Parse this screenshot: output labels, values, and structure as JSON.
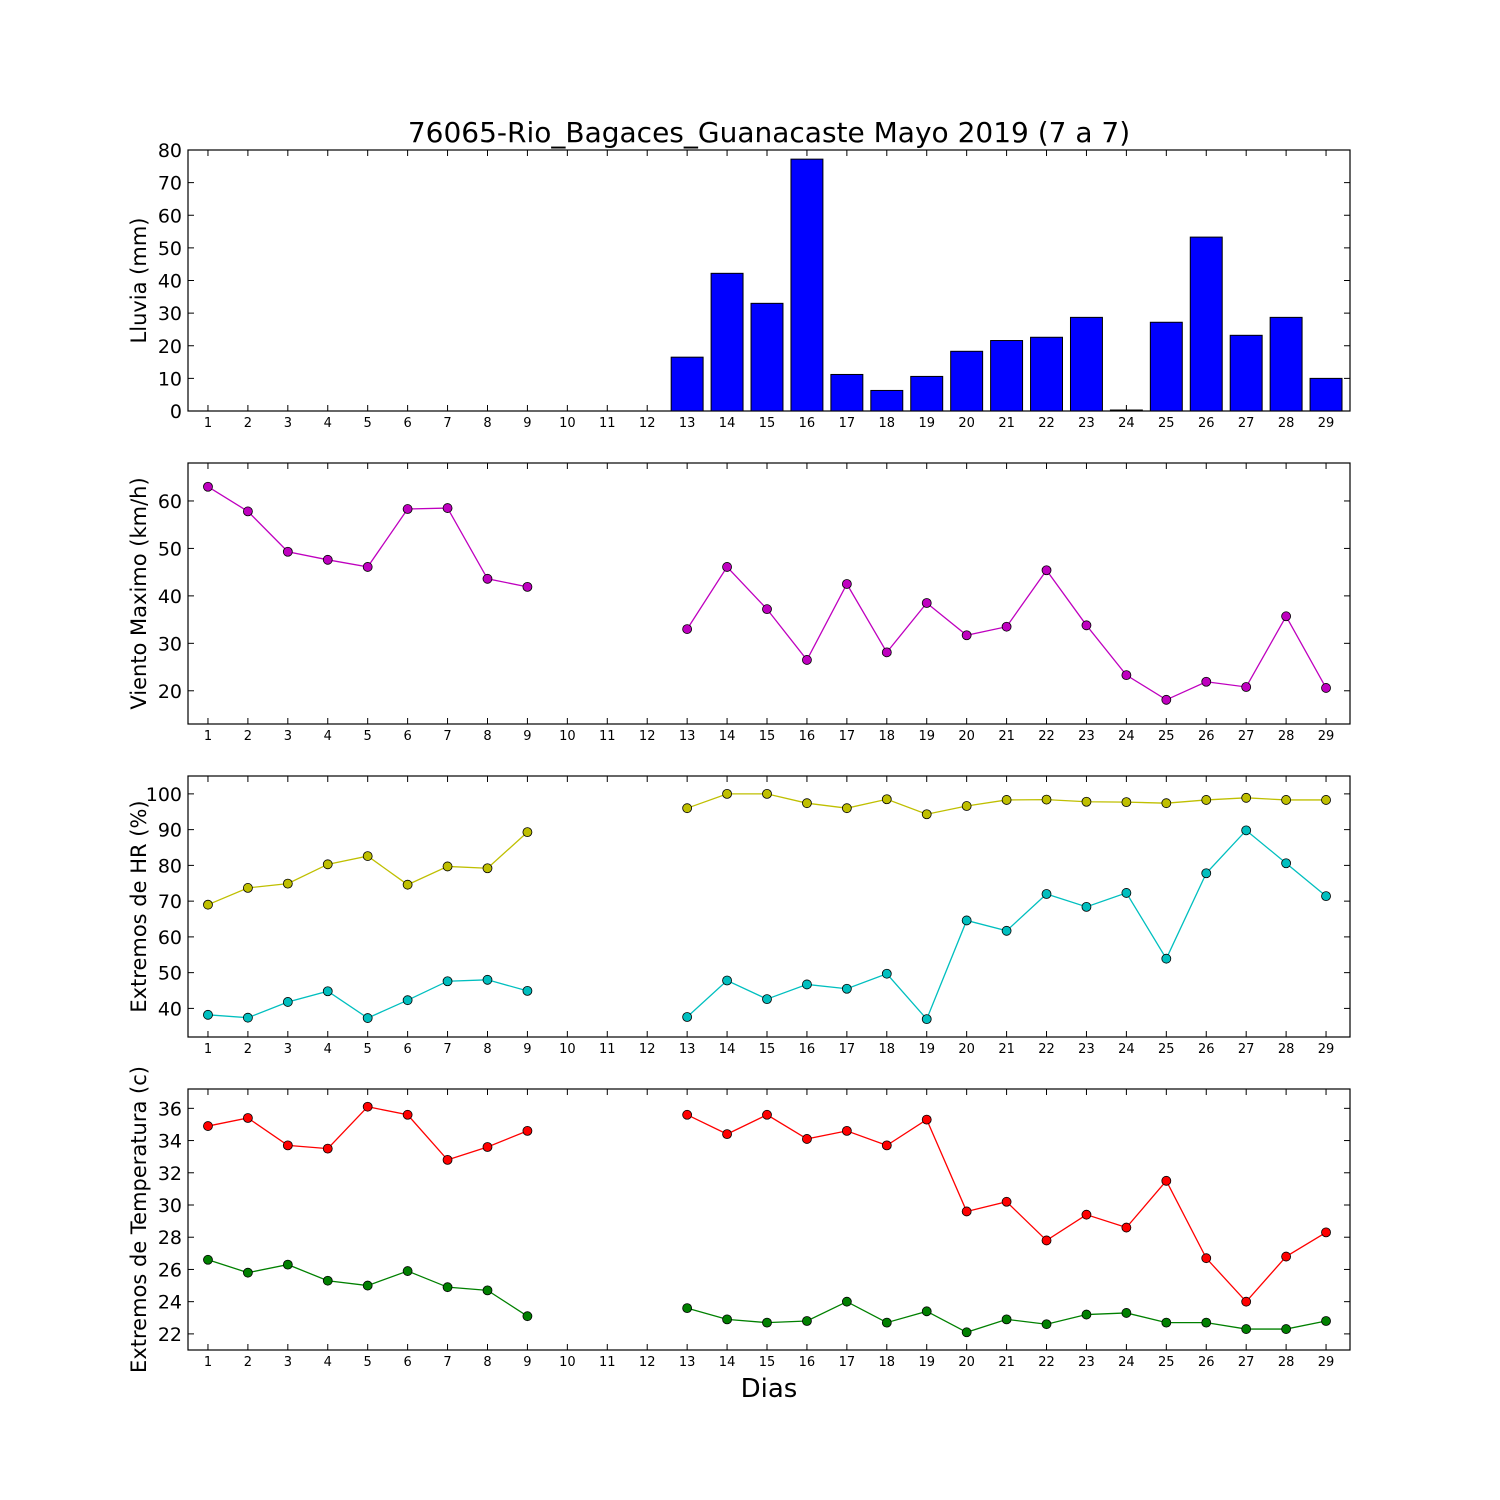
{
  "title": "76065-Rio_Bagaces_Guanacaste Mayo 2019  (7 a 7)",
  "xlabel": "Dias",
  "colors": {
    "rain": "#0000ff",
    "wind": "#bf00bf",
    "hr_max": "#bfbf00",
    "hr_min": "#00bfbf",
    "temp_max": "#ff0000",
    "temp_min": "#008000"
  },
  "chart_data": [
    {
      "type": "bar",
      "ylabel": "Lluvia (mm)",
      "categories": [
        "1",
        "2",
        "3",
        "4",
        "5",
        "6",
        "7",
        "8",
        "9",
        "10",
        "11",
        "12",
        "13",
        "14",
        "15",
        "16",
        "17",
        "18",
        "19",
        "20",
        "21",
        "22",
        "23",
        "24",
        "25",
        "26",
        "27",
        "28",
        "29"
      ],
      "ylim": [
        0,
        80
      ],
      "yticks": [
        0,
        10,
        20,
        30,
        40,
        50,
        60,
        70,
        80
      ],
      "grid": false,
      "series": [
        {
          "values": [
            0,
            0,
            0,
            0,
            0,
            0,
            0,
            0,
            0,
            0,
            0,
            0,
            16.5,
            42.2,
            33.0,
            77.2,
            11.2,
            6.3,
            10.6,
            18.3,
            21.6,
            22.6,
            28.7,
            0.3,
            27.2,
            53.3,
            23.2,
            28.7,
            10.0
          ]
        }
      ]
    },
    {
      "type": "line",
      "ylabel": "Viento Maximo (km/h)",
      "x": [
        1,
        2,
        3,
        4,
        5,
        6,
        7,
        8,
        9,
        10,
        11,
        12,
        13,
        14,
        15,
        16,
        17,
        18,
        19,
        20,
        21,
        22,
        23,
        24,
        25,
        26,
        27,
        28,
        29
      ],
      "ylim": [
        13,
        68
      ],
      "yticks": [
        20,
        30,
        40,
        50,
        60
      ],
      "grid": false,
      "series": [
        {
          "values": [
            63.0,
            57.8,
            49.3,
            47.6,
            46.1,
            58.3,
            58.5,
            43.6,
            41.9,
            null,
            null,
            null,
            33.0,
            46.1,
            37.2,
            26.5,
            42.5,
            28.1,
            38.5,
            31.7,
            33.5,
            45.4,
            33.8,
            23.3,
            18.1,
            21.9,
            20.8,
            35.7,
            20.6
          ]
        }
      ]
    },
    {
      "type": "line",
      "ylabel": "Extremos de HR (%)",
      "x": [
        1,
        2,
        3,
        4,
        5,
        6,
        7,
        8,
        9,
        10,
        11,
        12,
        13,
        14,
        15,
        16,
        17,
        18,
        19,
        20,
        21,
        22,
        23,
        24,
        25,
        26,
        27,
        28,
        29
      ],
      "ylim": [
        32,
        105
      ],
      "yticks": [
        40,
        50,
        60,
        70,
        80,
        90,
        100
      ],
      "grid": false,
      "series": [
        {
          "values": [
            69.0,
            73.7,
            74.9,
            80.3,
            82.6,
            74.6,
            79.7,
            79.2,
            89.3,
            null,
            null,
            null,
            96.0,
            100.0,
            100.0,
            97.4,
            96.0,
            98.5,
            94.3,
            96.6,
            98.3,
            98.4,
            97.8,
            97.7,
            97.4,
            98.3,
            98.9,
            98.3,
            98.3
          ]
        },
        {
          "values": [
            38.2,
            37.4,
            41.8,
            44.8,
            37.3,
            42.3,
            47.6,
            48.0,
            44.9,
            null,
            null,
            null,
            37.6,
            47.8,
            42.6,
            46.7,
            45.5,
            49.7,
            37.0,
            64.6,
            61.7,
            72.0,
            68.4,
            72.3,
            53.9,
            77.8,
            89.8,
            80.6,
            71.4
          ]
        }
      ]
    },
    {
      "type": "line",
      "ylabel": "Extremos de Temperatura (c)",
      "x": [
        1,
        2,
        3,
        4,
        5,
        6,
        7,
        8,
        9,
        10,
        11,
        12,
        13,
        14,
        15,
        16,
        17,
        18,
        19,
        20,
        21,
        22,
        23,
        24,
        25,
        26,
        27,
        28,
        29
      ],
      "ylim": [
        21,
        37.2
      ],
      "yticks": [
        22,
        24,
        26,
        28,
        30,
        32,
        34,
        36
      ],
      "grid": false,
      "series": [
        {
          "values": [
            34.9,
            35.4,
            33.7,
            33.5,
            36.1,
            35.6,
            32.8,
            33.6,
            34.6,
            null,
            null,
            null,
            35.6,
            34.4,
            35.6,
            34.1,
            34.6,
            33.7,
            35.3,
            29.6,
            30.2,
            27.8,
            29.4,
            28.6,
            31.5,
            26.7,
            24.0,
            26.8,
            28.3
          ]
        },
        {
          "values": [
            26.6,
            25.8,
            26.3,
            25.3,
            25.0,
            25.9,
            24.9,
            24.7,
            23.1,
            null,
            null,
            null,
            23.6,
            22.9,
            22.7,
            22.8,
            24.0,
            22.7,
            23.4,
            22.1,
            22.9,
            22.6,
            23.2,
            23.3,
            22.7,
            22.7,
            22.3,
            22.3,
            22.8
          ]
        }
      ]
    }
  ]
}
